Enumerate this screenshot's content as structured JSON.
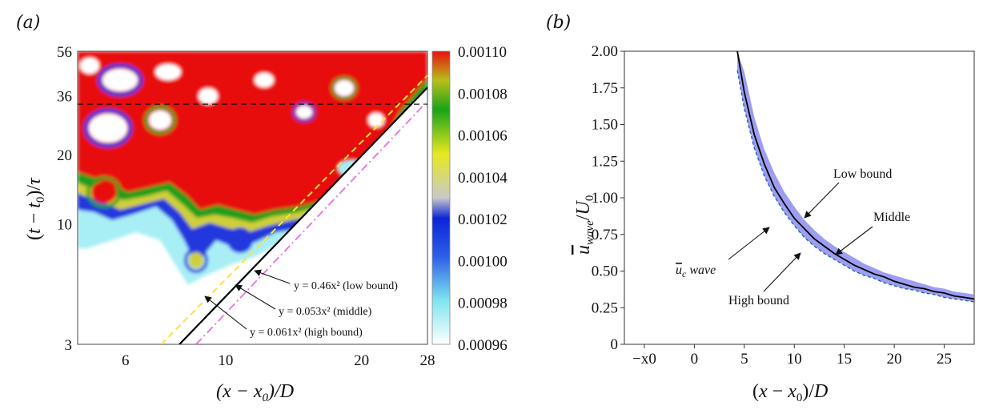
{
  "panels": {
    "a": "(a)",
    "b": "(b)"
  },
  "chart_data": [
    {
      "type": "heatmap",
      "panel": "(a)",
      "xlabel": "(x − x0)/D",
      "ylabel": "(t − t0)/τ",
      "xscale": "log",
      "yscale": "log",
      "xlim": [
        4.7,
        28
      ],
      "ylim": [
        3,
        56
      ],
      "xticks": [
        "6",
        "10",
        "20",
        "28"
      ],
      "yticks": [
        "3",
        "10",
        "20",
        "36",
        "56"
      ],
      "horizontal_dashed_line_y": 33,
      "colorbar": {
        "range": [
          0.00096,
          0.0011
        ],
        "ticks": [
          "0.00110",
          "0.00108",
          "0.00106",
          "0.00104",
          "0.00102",
          "0.00100",
          "0.00098",
          "0.00096"
        ],
        "colors": [
          "#ffffff",
          "#7fe5ef",
          "#0b24d6",
          "#c9c9c9",
          "#e8e820",
          "#18a418",
          "#e81010"
        ]
      },
      "fit_lines": [
        {
          "label": "y = 0.46x² (low bound)",
          "coef": 0.46,
          "style": "dashed",
          "color": "#ffe23a"
        },
        {
          "label": "y = 0.053x² (middle)",
          "coef": 0.053,
          "style": "solid",
          "color": "#000000"
        },
        {
          "label": "y = 0.061x² (high bound)",
          "coef": 0.061,
          "style": "dashdot",
          "color": "#e77be0"
        }
      ]
    },
    {
      "type": "line",
      "panel": "(b)",
      "xlabel": "(x − x0)/D",
      "ylabel": "ū_wave/U0",
      "xlim": [
        -7,
        28
      ],
      "ylim": [
        0,
        2.0
      ],
      "xticks": [
        "−x0",
        "0",
        "5",
        "10",
        "15",
        "20",
        "25"
      ],
      "yticks": [
        "0",
        "0.25",
        "0.50",
        "0.75",
        "1.00",
        "1.25",
        "1.50",
        "1.75",
        "2.00"
      ],
      "band_color": "#8c8cf0",
      "curves": {
        "x": [
          4.3,
          5,
          6,
          7,
          8,
          9,
          10,
          11,
          12,
          13,
          14,
          15,
          16,
          17,
          18,
          19,
          20,
          21,
          22,
          23,
          24,
          25,
          26,
          27,
          28
        ],
        "middle": [
          2.0,
          1.72,
          1.43,
          1.23,
          1.07,
          0.96,
          0.86,
          0.79,
          0.72,
          0.67,
          0.62,
          0.58,
          0.54,
          0.51,
          0.48,
          0.46,
          0.43,
          0.41,
          0.39,
          0.38,
          0.36,
          0.35,
          0.33,
          0.32,
          0.31
        ],
        "low_bound": [
          2.0,
          1.86,
          1.55,
          1.33,
          1.17,
          1.04,
          0.94,
          0.85,
          0.78,
          0.72,
          0.67,
          0.63,
          0.59,
          0.55,
          0.52,
          0.49,
          0.47,
          0.45,
          0.43,
          0.41,
          0.39,
          0.38,
          0.36,
          0.35,
          0.34
        ],
        "high_bound": [
          1.87,
          1.61,
          1.34,
          1.15,
          1.01,
          0.9,
          0.81,
          0.73,
          0.67,
          0.62,
          0.58,
          0.54,
          0.5,
          0.47,
          0.45,
          0.42,
          0.4,
          0.38,
          0.37,
          0.35,
          0.34,
          0.32,
          0.31,
          0.3,
          0.29
        ]
      },
      "annotations": {
        "low": "Low bound",
        "middle": "Middle",
        "high": "High bound",
        "uc": "u_c wave"
      }
    }
  ]
}
